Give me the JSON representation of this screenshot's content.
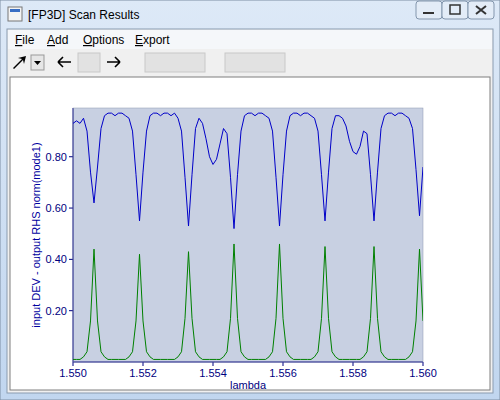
{
  "window": {
    "title": "[FP3D] Scan Results",
    "menu": [
      "File",
      "Add",
      "Options",
      "Export"
    ]
  },
  "chart_data": {
    "type": "line",
    "xlabel": "lambda",
    "ylabel": "input DEV - output RHS norm(mode1)",
    "xlim": [
      1.55,
      1.56
    ],
    "ylim": [
      0,
      0.99
    ],
    "xticks": [
      {
        "value": 1.55,
        "label": "1.550"
      },
      {
        "value": 1.552,
        "label": "1.552"
      },
      {
        "value": 1.554,
        "label": "1.554"
      },
      {
        "value": 1.556,
        "label": "1.556"
      },
      {
        "value": 1.558,
        "label": "1.558"
      },
      {
        "value": 1.56,
        "label": "1.560"
      }
    ],
    "yticks": [
      {
        "value": 0.2,
        "label": "0.20"
      },
      {
        "value": 0.4,
        "label": "0.40"
      },
      {
        "value": 0.6,
        "label": "0.60"
      },
      {
        "value": 0.8,
        "label": "0.80"
      }
    ],
    "x": [
      1.55,
      1.5501,
      1.5502,
      1.5503,
      1.5504,
      1.5505,
      1.5506,
      1.5507,
      1.5508,
      1.5509,
      1.551,
      1.5511,
      1.5512,
      1.5513,
      1.5514,
      1.5515,
      1.5516,
      1.5517,
      1.5518,
      1.5519,
      1.552,
      1.5521,
      1.5522,
      1.5523,
      1.5524,
      1.5525,
      1.5526,
      1.5527,
      1.5528,
      1.5529,
      1.553,
      1.5531,
      1.5532,
      1.5533,
      1.5534,
      1.5535,
      1.5536,
      1.5537,
      1.5538,
      1.5539,
      1.554,
      1.5541,
      1.5542,
      1.5543,
      1.5544,
      1.5545,
      1.5546,
      1.5547,
      1.5548,
      1.5549,
      1.555,
      1.5551,
      1.5552,
      1.5553,
      1.5554,
      1.5555,
      1.5556,
      1.5557,
      1.5558,
      1.5559,
      1.556,
      1.5561,
      1.5562,
      1.5563,
      1.5564,
      1.5565,
      1.5566,
      1.5567,
      1.5568,
      1.5569,
      1.557,
      1.5571,
      1.5572,
      1.5573,
      1.5574,
      1.5575,
      1.5576,
      1.5577,
      1.5578,
      1.5579,
      1.558,
      1.5581,
      1.5582,
      1.5583,
      1.5584,
      1.5585,
      1.5586,
      1.5587,
      1.5588,
      1.5589,
      1.559,
      1.5591,
      1.5592,
      1.5593,
      1.5594,
      1.5595,
      1.5596,
      1.5597,
      1.5598,
      1.5599,
      1.56
    ],
    "series": [
      {
        "color": "#0000c8",
        "values": [
          0.93,
          0.94,
          0.93,
          0.95,
          0.9,
          0.74,
          0.62,
          0.76,
          0.91,
          0.96,
          0.97,
          0.97,
          0.96,
          0.97,
          0.97,
          0.96,
          0.95,
          0.9,
          0.73,
          0.55,
          0.74,
          0.9,
          0.96,
          0.97,
          0.97,
          0.96,
          0.97,
          0.97,
          0.96,
          0.97,
          0.95,
          0.9,
          0.72,
          0.53,
          0.73,
          0.91,
          0.95,
          0.93,
          0.87,
          0.8,
          0.77,
          0.79,
          0.85,
          0.91,
          0.89,
          0.72,
          0.52,
          0.73,
          0.9,
          0.96,
          0.97,
          0.97,
          0.96,
          0.97,
          0.97,
          0.96,
          0.95,
          0.9,
          0.72,
          0.53,
          0.73,
          0.9,
          0.96,
          0.97,
          0.97,
          0.96,
          0.97,
          0.97,
          0.96,
          0.95,
          0.9,
          0.73,
          0.55,
          0.74,
          0.91,
          0.96,
          0.96,
          0.95,
          0.92,
          0.86,
          0.82,
          0.81,
          0.84,
          0.9,
          0.89,
          0.73,
          0.55,
          0.74,
          0.91,
          0.96,
          0.97,
          0.97,
          0.96,
          0.97,
          0.97,
          0.96,
          0.95,
          0.91,
          0.75,
          0.57,
          0.76
        ]
      },
      {
        "color": "#008000",
        "values": [
          0.01,
          0.01,
          0.01,
          0.02,
          0.04,
          0.16,
          0.44,
          0.16,
          0.04,
          0.02,
          0.01,
          0.01,
          0.01,
          0.01,
          0.01,
          0.01,
          0.02,
          0.04,
          0.16,
          0.42,
          0.16,
          0.04,
          0.02,
          0.01,
          0.01,
          0.01,
          0.01,
          0.01,
          0.01,
          0.01,
          0.02,
          0.04,
          0.17,
          0.43,
          0.17,
          0.04,
          0.02,
          0.01,
          0.01,
          0.01,
          0.01,
          0.01,
          0.01,
          0.02,
          0.04,
          0.17,
          0.46,
          0.17,
          0.04,
          0.02,
          0.01,
          0.01,
          0.01,
          0.01,
          0.01,
          0.01,
          0.02,
          0.04,
          0.17,
          0.46,
          0.17,
          0.04,
          0.02,
          0.01,
          0.01,
          0.01,
          0.01,
          0.01,
          0.01,
          0.02,
          0.04,
          0.17,
          0.45,
          0.17,
          0.04,
          0.02,
          0.01,
          0.01,
          0.01,
          0.01,
          0.01,
          0.01,
          0.01,
          0.02,
          0.04,
          0.17,
          0.45,
          0.17,
          0.04,
          0.02,
          0.01,
          0.01,
          0.01,
          0.01,
          0.01,
          0.01,
          0.02,
          0.04,
          0.16,
          0.44,
          0.16
        ]
      }
    ]
  }
}
